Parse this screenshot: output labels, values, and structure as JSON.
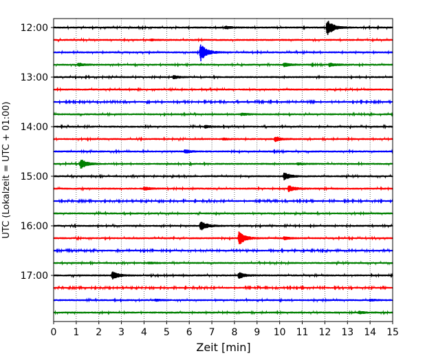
{
  "chart_data": {
    "type": "line",
    "subtype": "helicorder-seismogram",
    "xlabel": "Zeit  [min]",
    "ylabel": "UTC (Lokalzeit = UTC + 01:00)",
    "xlim": [
      0,
      15
    ],
    "xticks": [
      "0",
      "1",
      "2",
      "3",
      "4",
      "5",
      "6",
      "7",
      "8",
      "9",
      "10",
      "11",
      "12",
      "13",
      "14",
      "15"
    ],
    "yticks": [
      {
        "label": "12:00",
        "row": 0
      },
      {
        "label": "13:00",
        "row": 4
      },
      {
        "label": "14:00",
        "row": 8
      },
      {
        "label": "15:00",
        "row": 12
      },
      {
        "label": "16:00",
        "row": 16
      },
      {
        "label": "17:00",
        "row": 20
      }
    ],
    "minutes_per_row": 15,
    "grid": "vertical dotted",
    "trace_colors": [
      "#000000",
      "#ff0000",
      "#0000ff",
      "#008000"
    ],
    "traces": [
      {
        "start": "12:00",
        "noise": 0.1,
        "events": [
          {
            "t": 12.1,
            "amp": 1.3
          },
          {
            "t": 7.6,
            "amp": 0.25
          }
        ]
      },
      {
        "start": "12:15",
        "noise": 0.1,
        "events": [
          {
            "t": 4.3,
            "amp": 0.12
          }
        ]
      },
      {
        "start": "12:30",
        "noise": 0.1,
        "events": [
          {
            "t": 6.5,
            "amp": 1.5
          }
        ]
      },
      {
        "start": "12:45",
        "noise": 0.1,
        "events": [
          {
            "t": 1.1,
            "amp": 0.25
          },
          {
            "t": 10.2,
            "amp": 0.3
          },
          {
            "t": 12.2,
            "amp": 0.3
          }
        ]
      },
      {
        "start": "13:00",
        "noise": 0.1,
        "events": [
          {
            "t": 5.3,
            "amp": 0.25
          }
        ]
      },
      {
        "start": "13:15",
        "noise": 0.1,
        "events": []
      },
      {
        "start": "13:30",
        "noise": 0.09,
        "events": []
      },
      {
        "start": "13:45",
        "noise": 0.1,
        "events": [
          {
            "t": 8.3,
            "amp": 0.2
          }
        ]
      },
      {
        "start": "14:00",
        "noise": 0.1,
        "events": [
          {
            "t": 6.7,
            "amp": 0.2
          }
        ]
      },
      {
        "start": "14:15",
        "noise": 0.1,
        "events": [
          {
            "t": 9.8,
            "amp": 0.4
          },
          {
            "t": 7.5,
            "amp": 0.15
          }
        ]
      },
      {
        "start": "14:30",
        "noise": 0.1,
        "events": [
          {
            "t": 5.8,
            "amp": 0.3
          }
        ]
      },
      {
        "start": "14:45",
        "noise": 0.1,
        "events": [
          {
            "t": 1.2,
            "amp": 0.8
          },
          {
            "t": 10.8,
            "amp": 0.15
          }
        ]
      },
      {
        "start": "15:00",
        "noise": 0.1,
        "events": [
          {
            "t": 10.2,
            "amp": 0.6
          }
        ]
      },
      {
        "start": "15:15",
        "noise": 0.1,
        "events": [
          {
            "t": 10.4,
            "amp": 0.5
          },
          {
            "t": 4.0,
            "amp": 0.3
          }
        ]
      },
      {
        "start": "15:30",
        "noise": 0.09,
        "events": []
      },
      {
        "start": "15:45",
        "noise": 0.1,
        "events": []
      },
      {
        "start": "16:00",
        "noise": 0.1,
        "events": [
          {
            "t": 6.5,
            "amp": 0.8
          }
        ]
      },
      {
        "start": "16:15",
        "noise": 0.1,
        "events": [
          {
            "t": 8.2,
            "amp": 1.1
          },
          {
            "t": 10.2,
            "amp": 0.25
          }
        ]
      },
      {
        "start": "16:30",
        "noise": 0.09,
        "events": []
      },
      {
        "start": "16:45",
        "noise": 0.1,
        "events": [
          {
            "t": 4.2,
            "amp": 0.15
          }
        ]
      },
      {
        "start": "17:00",
        "noise": 0.1,
        "events": [
          {
            "t": 2.6,
            "amp": 0.7
          },
          {
            "t": 8.2,
            "amp": 0.5
          }
        ]
      },
      {
        "start": "17:15",
        "noise": 0.09,
        "events": []
      },
      {
        "start": "17:30",
        "noise": 0.1,
        "events": [
          {
            "t": 4.5,
            "amp": 0.15
          },
          {
            "t": 14.0,
            "amp": 0.15
          }
        ]
      },
      {
        "start": "17:45",
        "noise": 0.1,
        "events": [
          {
            "t": 13.5,
            "amp": 0.2
          }
        ]
      }
    ]
  }
}
